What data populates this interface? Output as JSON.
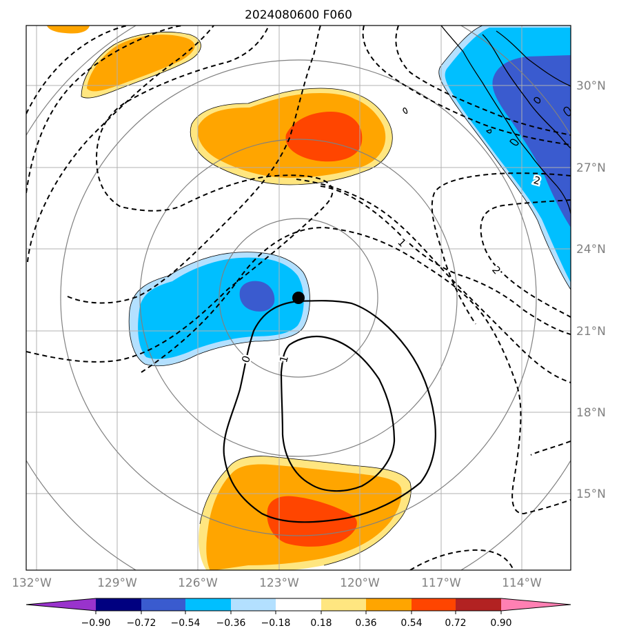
{
  "title": "2024080600 F060",
  "lon_labels": [
    "132°W",
    "129°W",
    "126°W",
    "123°W",
    "120°W",
    "117°W",
    "114°W"
  ],
  "lat_labels": [
    "30°N",
    "27°N",
    "24°N",
    "21°N",
    "18°N",
    "15°N"
  ],
  "colorbar": {
    "tick_labels": [
      "−0.90",
      "−0.72",
      "−0.54",
      "−0.36",
      "−0.18",
      "0.18",
      "0.36",
      "0.54",
      "0.72",
      "0.90"
    ],
    "colors": [
      "#9933cc",
      "#000080",
      "#3a5bcf",
      "#00bfff",
      "#b3e0ff",
      "#ffffff",
      "#ffe680",
      "#ffa500",
      "#ff4500",
      "#b22222",
      "#ff80b3"
    ]
  },
  "contour_labels": [
    "0",
    "1",
    "1",
    "2",
    "2"
  ],
  "storm_center_marker": "black-dot",
  "colors": {
    "grid": "#b0b0b0",
    "range_rings": "#808080",
    "coastline": "#000000"
  }
}
